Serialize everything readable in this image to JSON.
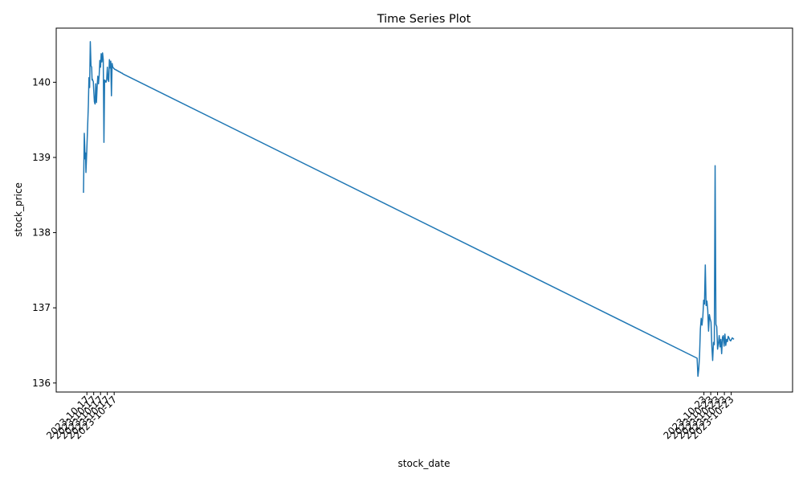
{
  "chart_data": {
    "type": "line",
    "title": "Time Series Plot",
    "xlabel": "stock_date",
    "ylabel": "stock_price",
    "ylim": [
      135.88,
      140.72
    ],
    "yticks": [
      136,
      137,
      138,
      139,
      140
    ],
    "xlim": [
      -0.4,
      10.4
    ],
    "grid": false,
    "legend": "none",
    "line_color": "#1f77b4",
    "x_tick_labels": [
      {
        "x": 0.05,
        "label": "2023-10-17"
      },
      {
        "x": 0.15,
        "label": "2023-10-17"
      },
      {
        "x": 0.25,
        "label": "2023-10-17"
      },
      {
        "x": 0.35,
        "label": "2023-10-17"
      },
      {
        "x": 0.45,
        "label": "2023-10-17"
      },
      {
        "x": 9.1,
        "label": "2023-10-23"
      },
      {
        "x": 9.2,
        "label": "2023-10-23"
      },
      {
        "x": 9.3,
        "label": "2023-10-23"
      },
      {
        "x": 9.4,
        "label": "2023-10-23"
      },
      {
        "x": 9.5,
        "label": "2023-10-23"
      }
    ],
    "series": [
      {
        "x": [
          0.0,
          0.012,
          0.024,
          0.03,
          0.036,
          0.048,
          0.06,
          0.072,
          0.08,
          0.09,
          0.1,
          0.11,
          0.12,
          0.126,
          0.132,
          0.138,
          0.144,
          0.15,
          0.16,
          0.17,
          0.18,
          0.19,
          0.2,
          0.21,
          0.22,
          0.23,
          0.24,
          0.25,
          0.26,
          0.27,
          0.28,
          0.29,
          0.3,
          0.31,
          0.32,
          0.33,
          0.34,
          0.35,
          0.36,
          0.37,
          0.38,
          0.39,
          0.4,
          0.41,
          0.42,
          0.43,
          0.44,
          0.45,
          0.46,
          0.47,
          0.48,
          0.49,
          0.5,
          0.51,
          0.52,
          0.53,
          0.54,
          0.55,
          0.56,
          0.57,
          0.58,
          9.0,
          9.012,
          9.024,
          9.036,
          9.048,
          9.06,
          9.072,
          9.084,
          9.096,
          9.108,
          9.12,
          9.132,
          9.144,
          9.156,
          9.168,
          9.18,
          9.192,
          9.204,
          9.216,
          9.228,
          9.24,
          9.252,
          9.264,
          9.276,
          9.288,
          9.3,
          9.312,
          9.324,
          9.336,
          9.348,
          9.36,
          9.372,
          9.384,
          9.396,
          9.408,
          9.42,
          9.432,
          9.444,
          9.456,
          9.468,
          9.48,
          9.492,
          9.504,
          9.516,
          9.528,
          9.54
        ],
        "y": [
          138.53,
          139.32,
          138.98,
          139.06,
          138.8,
          139.08,
          139.39,
          139.71,
          140.06,
          139.93,
          140.54,
          140.22,
          140.2,
          140.03,
          140.04,
          140.02,
          140.01,
          139.9,
          139.74,
          139.71,
          139.98,
          139.73,
          139.93,
          140.08,
          139.98,
          140.09,
          140.29,
          140.2,
          140.38,
          140.27,
          140.39,
          140.3,
          139.2,
          140.03,
          140.02,
          140.0,
          140.03,
          140.2,
          140.04,
          140.01,
          140.3,
          140.19,
          140.28,
          139.82,
          140.25,
          140.2,
          140.19,
          140.18,
          140.17,
          140.17,
          140.16,
          140.16,
          140.15,
          140.15,
          140.14,
          140.14,
          140.13,
          140.13,
          140.12,
          140.12,
          140.11,
          136.33,
          136.09,
          136.18,
          136.37,
          136.72,
          136.86,
          136.77,
          136.88,
          137.1,
          137.05,
          137.57,
          137.03,
          137.09,
          136.97,
          136.69,
          136.91,
          136.85,
          136.81,
          136.49,
          136.3,
          136.54,
          136.51,
          138.89,
          136.78,
          136.75,
          136.45,
          136.52,
          136.63,
          136.48,
          136.58,
          136.39,
          136.61,
          136.63,
          136.49,
          136.65,
          136.5,
          136.58,
          136.55,
          136.62,
          136.6,
          136.57,
          136.56,
          136.58,
          136.6,
          136.59,
          136.58
        ]
      }
    ]
  }
}
